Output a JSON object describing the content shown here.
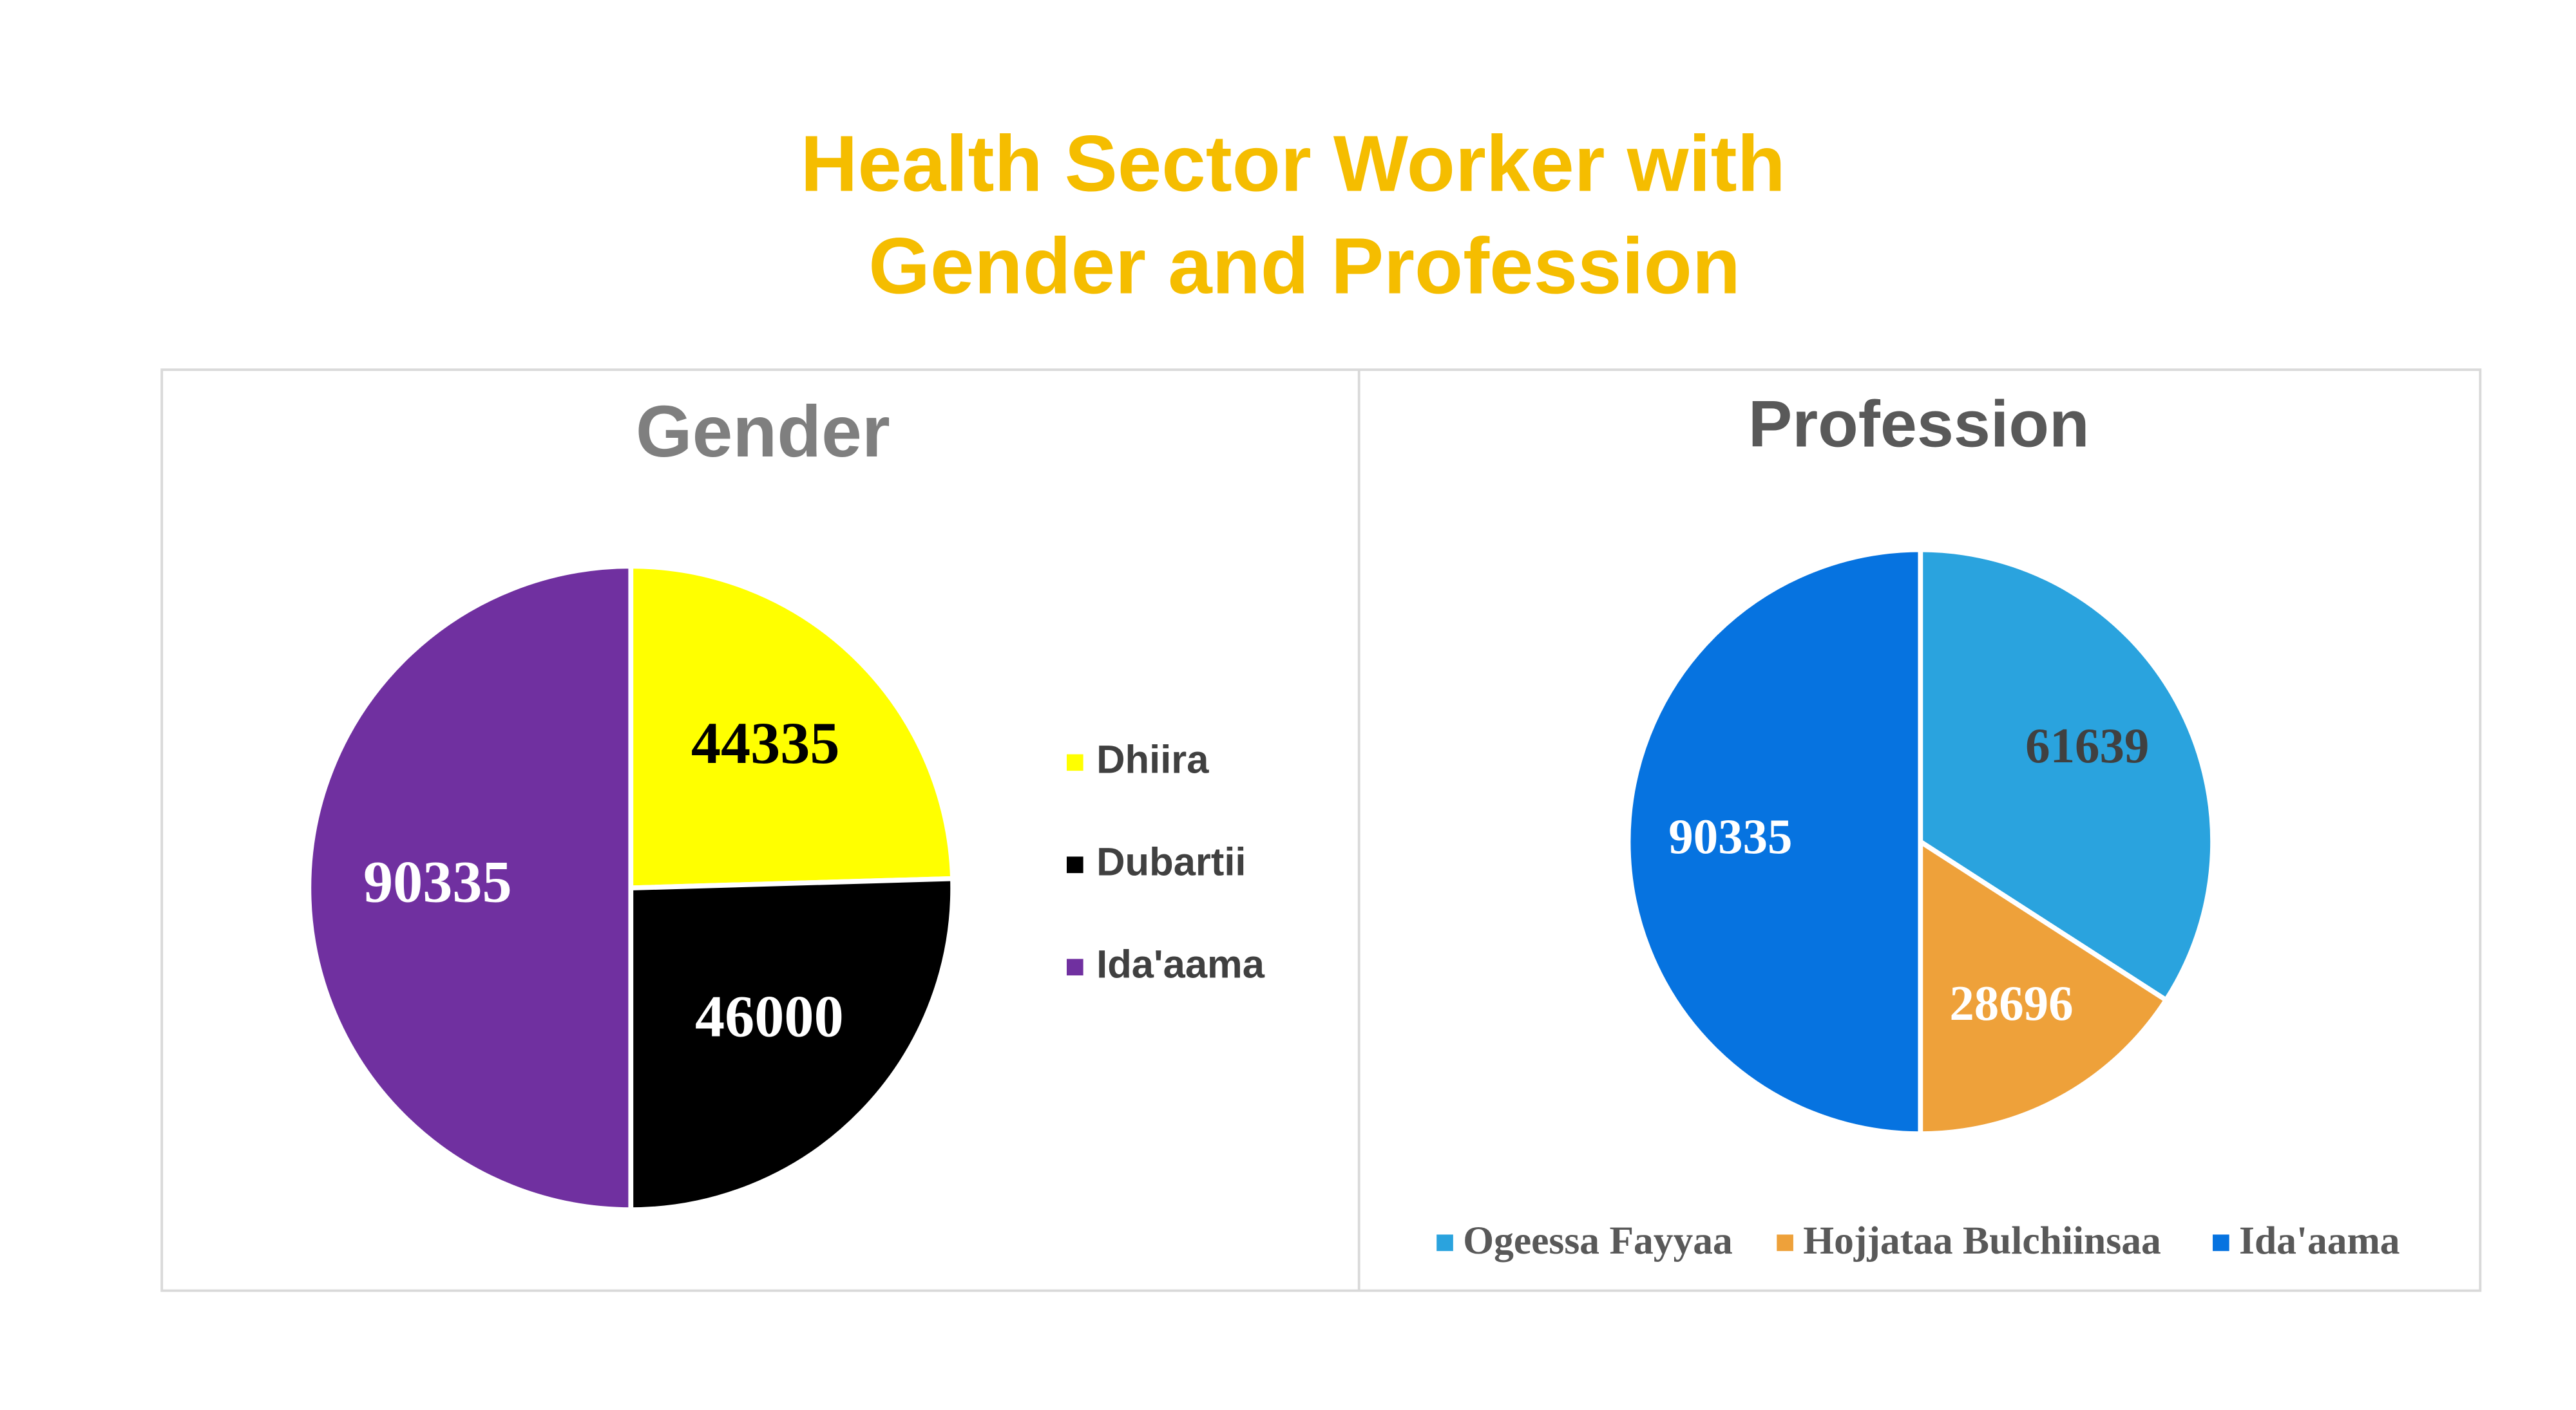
{
  "title": [
    "Health Sector Worker with",
    "Gender and Profession"
  ],
  "chart_data": [
    {
      "type": "pie",
      "title": "Gender",
      "legend": "right",
      "categories": [
        "Dhiira",
        "Dubartii",
        "Ida'aama"
      ],
      "values": [
        44335,
        46000,
        90335
      ],
      "colors": [
        "#ffff00",
        "#000000",
        "#7030a0"
      ],
      "label_colors": [
        "#000000",
        "#ffffff",
        "#ffffff"
      ]
    },
    {
      "type": "pie",
      "title": "Profession",
      "legend": "bottom",
      "categories": [
        "Ogeessa Fayyaa",
        "Hojjataa Bulchiinsaa",
        "Ida'aama"
      ],
      "values": [
        61639,
        28696,
        90335
      ],
      "colors": [
        "#2aa3de",
        "#eea13a",
        "#0673e0"
      ],
      "label_colors": [
        "#404040",
        "#ffffff",
        "#ffffff"
      ]
    }
  ]
}
